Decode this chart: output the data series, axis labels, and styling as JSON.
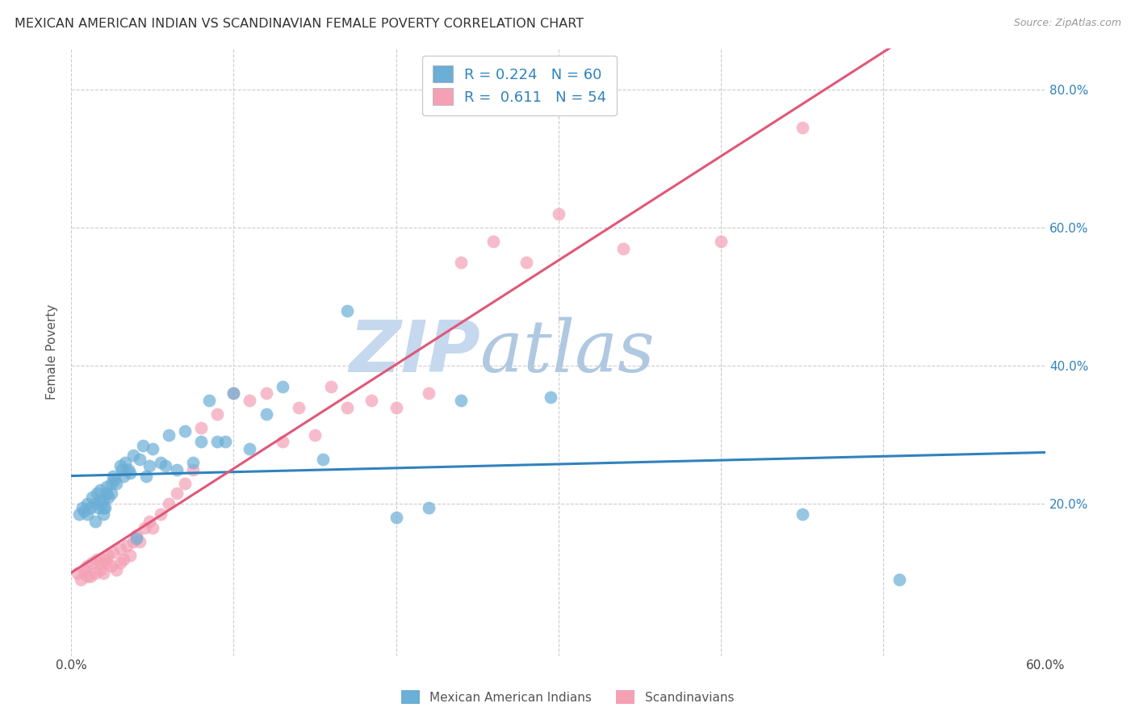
{
  "title": "MEXICAN AMERICAN INDIAN VS SCANDINAVIAN FEMALE POVERTY CORRELATION CHART",
  "source": "Source: ZipAtlas.com",
  "ylabel": "Female Poverty",
  "blue_label": "Mexican American Indians",
  "pink_label": "Scandinavians",
  "blue_R": 0.224,
  "blue_N": 60,
  "pink_R": 0.611,
  "pink_N": 54,
  "xlim": [
    0.0,
    0.6
  ],
  "ylim": [
    -0.02,
    0.86
  ],
  "y_ticks_right": [
    0.2,
    0.4,
    0.6,
    0.8
  ],
  "y_tick_labels_right": [
    "20.0%",
    "40.0%",
    "60.0%",
    "80.0%"
  ],
  "blue_color": "#6baed6",
  "pink_color": "#f4a0b5",
  "blue_line_color": "#3182bd",
  "pink_line_color": "#e05878",
  "watermark_zip_color": "#c8d8ee",
  "watermark_atlas_color": "#b8cce4",
  "background_color": "#ffffff",
  "grid_color": "#cccccc",
  "blue_x": [
    0.005,
    0.007,
    0.008,
    0.01,
    0.01,
    0.012,
    0.013,
    0.015,
    0.015,
    0.016,
    0.017,
    0.018,
    0.018,
    0.02,
    0.02,
    0.02,
    0.021,
    0.022,
    0.022,
    0.023,
    0.025,
    0.025,
    0.026,
    0.027,
    0.028,
    0.03,
    0.031,
    0.032,
    0.033,
    0.035,
    0.036,
    0.038,
    0.04,
    0.042,
    0.044,
    0.046,
    0.048,
    0.05,
    0.055,
    0.058,
    0.06,
    0.065,
    0.07,
    0.075,
    0.08,
    0.085,
    0.09,
    0.095,
    0.1,
    0.11,
    0.12,
    0.13,
    0.155,
    0.17,
    0.2,
    0.22,
    0.24,
    0.295,
    0.45,
    0.51
  ],
  "blue_y": [
    0.185,
    0.195,
    0.19,
    0.185,
    0.2,
    0.195,
    0.21,
    0.175,
    0.2,
    0.215,
    0.195,
    0.205,
    0.22,
    0.185,
    0.205,
    0.195,
    0.195,
    0.215,
    0.225,
    0.21,
    0.23,
    0.215,
    0.24,
    0.235,
    0.23,
    0.255,
    0.25,
    0.24,
    0.26,
    0.25,
    0.245,
    0.27,
    0.15,
    0.265,
    0.285,
    0.24,
    0.255,
    0.28,
    0.26,
    0.255,
    0.3,
    0.25,
    0.305,
    0.26,
    0.29,
    0.35,
    0.29,
    0.29,
    0.36,
    0.28,
    0.33,
    0.37,
    0.265,
    0.48,
    0.18,
    0.195,
    0.35,
    0.355,
    0.185,
    0.09
  ],
  "pink_x": [
    0.004,
    0.006,
    0.008,
    0.01,
    0.01,
    0.012,
    0.013,
    0.015,
    0.016,
    0.018,
    0.018,
    0.02,
    0.021,
    0.022,
    0.023,
    0.025,
    0.026,
    0.028,
    0.03,
    0.03,
    0.032,
    0.034,
    0.036,
    0.038,
    0.04,
    0.042,
    0.045,
    0.048,
    0.05,
    0.055,
    0.06,
    0.065,
    0.07,
    0.075,
    0.08,
    0.09,
    0.1,
    0.11,
    0.12,
    0.13,
    0.14,
    0.15,
    0.16,
    0.17,
    0.185,
    0.2,
    0.22,
    0.24,
    0.26,
    0.28,
    0.3,
    0.34,
    0.4,
    0.45
  ],
  "pink_y": [
    0.1,
    0.09,
    0.105,
    0.095,
    0.11,
    0.095,
    0.115,
    0.1,
    0.12,
    0.105,
    0.115,
    0.1,
    0.12,
    0.115,
    0.125,
    0.11,
    0.13,
    0.105,
    0.115,
    0.135,
    0.12,
    0.14,
    0.125,
    0.145,
    0.155,
    0.145,
    0.165,
    0.175,
    0.165,
    0.185,
    0.2,
    0.215,
    0.23,
    0.25,
    0.31,
    0.33,
    0.36,
    0.35,
    0.36,
    0.29,
    0.34,
    0.3,
    0.37,
    0.34,
    0.35,
    0.34,
    0.36,
    0.55,
    0.58,
    0.55,
    0.62,
    0.57,
    0.58,
    0.745
  ]
}
